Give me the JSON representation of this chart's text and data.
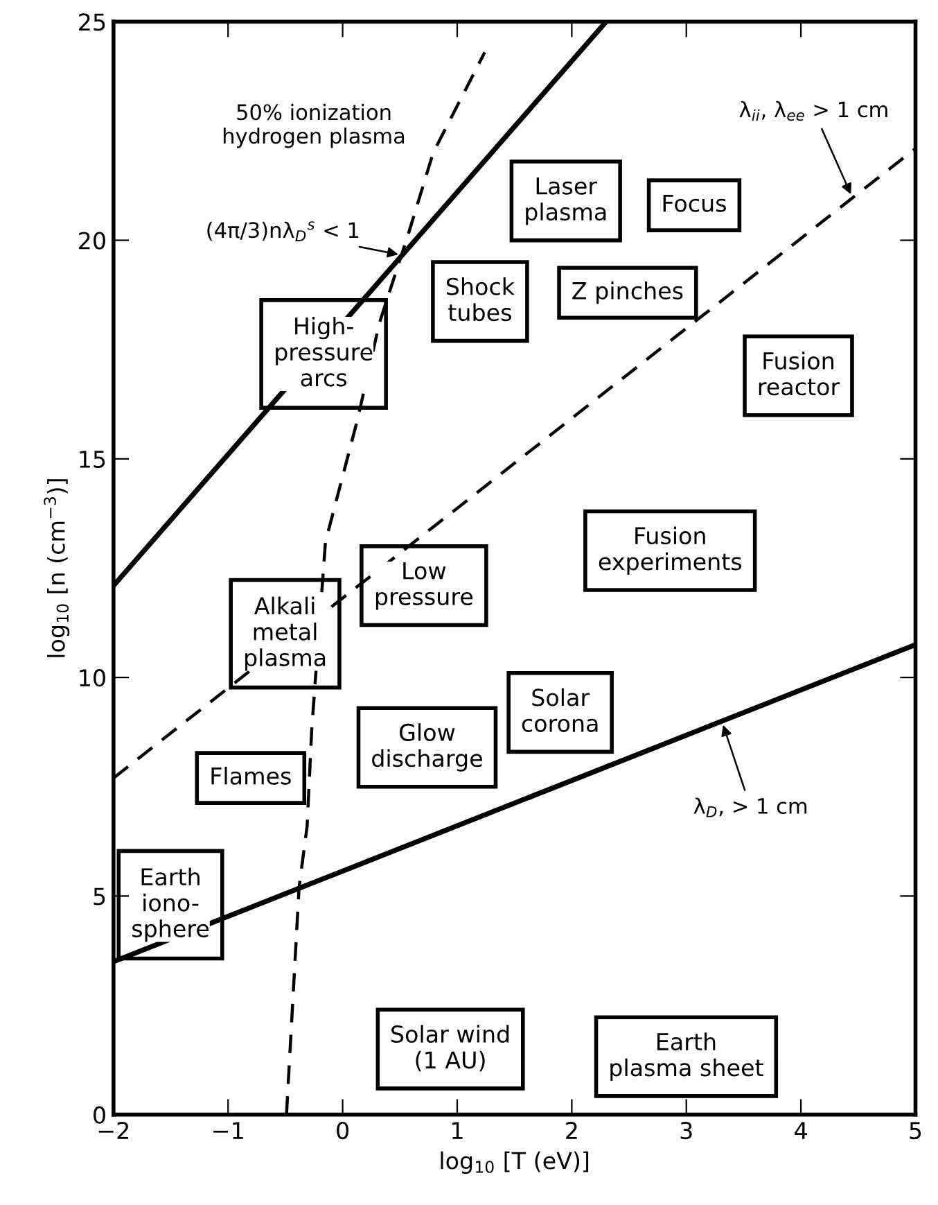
{
  "chart_data": {
    "type": "line",
    "xlabel": "log$_{10}$ [T (eV)]",
    "ylabel": "log$_{10}$ [n (cm$^{−3}$)]",
    "xlim": [
      -2,
      5
    ],
    "ylim": [
      0,
      25
    ],
    "xticks": [
      -2,
      -1,
      0,
      1,
      2,
      3,
      4,
      5
    ],
    "yticks": [
      0,
      5,
      10,
      15,
      20,
      25
    ],
    "grid": false,
    "legend": false,
    "marker": "none",
    "series": [
      {
        "name": "50% ionization\nhydrogen plasma",
        "color": "#000000",
        "line_style": "dashed",
        "x": [
          -0.49,
          -0.38,
          -0.31,
          -0.27,
          -0.15,
          0.13,
          0.32,
          0.58,
          0.79,
          1.24
        ],
        "values": [
          0,
          5.2,
          6.6,
          8.8,
          13.1,
          15.9,
          18.1,
          20.2,
          22.0,
          24.3
        ]
      },
      {
        "name": "(4π/3)nλ$_{D}$$^{s}$ < 1",
        "color": "#000000",
        "line_style": "solid",
        "x": [
          -2,
          2.3
        ],
        "values": [
          12.1,
          25
        ]
      },
      {
        "name": "λ$_{ii}$, λ$_{ee}$ > 1 cm",
        "color": "#000000",
        "line_style": "dashed",
        "x": [
          -2,
          5
        ],
        "values": [
          7.7,
          22.1
        ]
      },
      {
        "name": "λ$_{D}$, > 1 cm",
        "color": "#000000",
        "line_style": "solid",
        "x": [
          -2,
          5
        ],
        "values": [
          3.5,
          10.75
        ]
      }
    ],
    "annotations": [
      "Laser\nplasma",
      "Focus",
      "Shock\ntubes",
      "Z pinches",
      "High-\npressure\narcs",
      "Fusion\nreactor",
      "Fusion\nexperiments",
      "Low\npressure",
      "Alkali\nmetal\nplasma",
      "Solar\ncorona",
      "Glow\ndischarge",
      "Flames",
      "Earth\niono-\nsphere",
      "Solar wind\n(1 AU)",
      "Earth\nplasma sheet"
    ]
  }
}
